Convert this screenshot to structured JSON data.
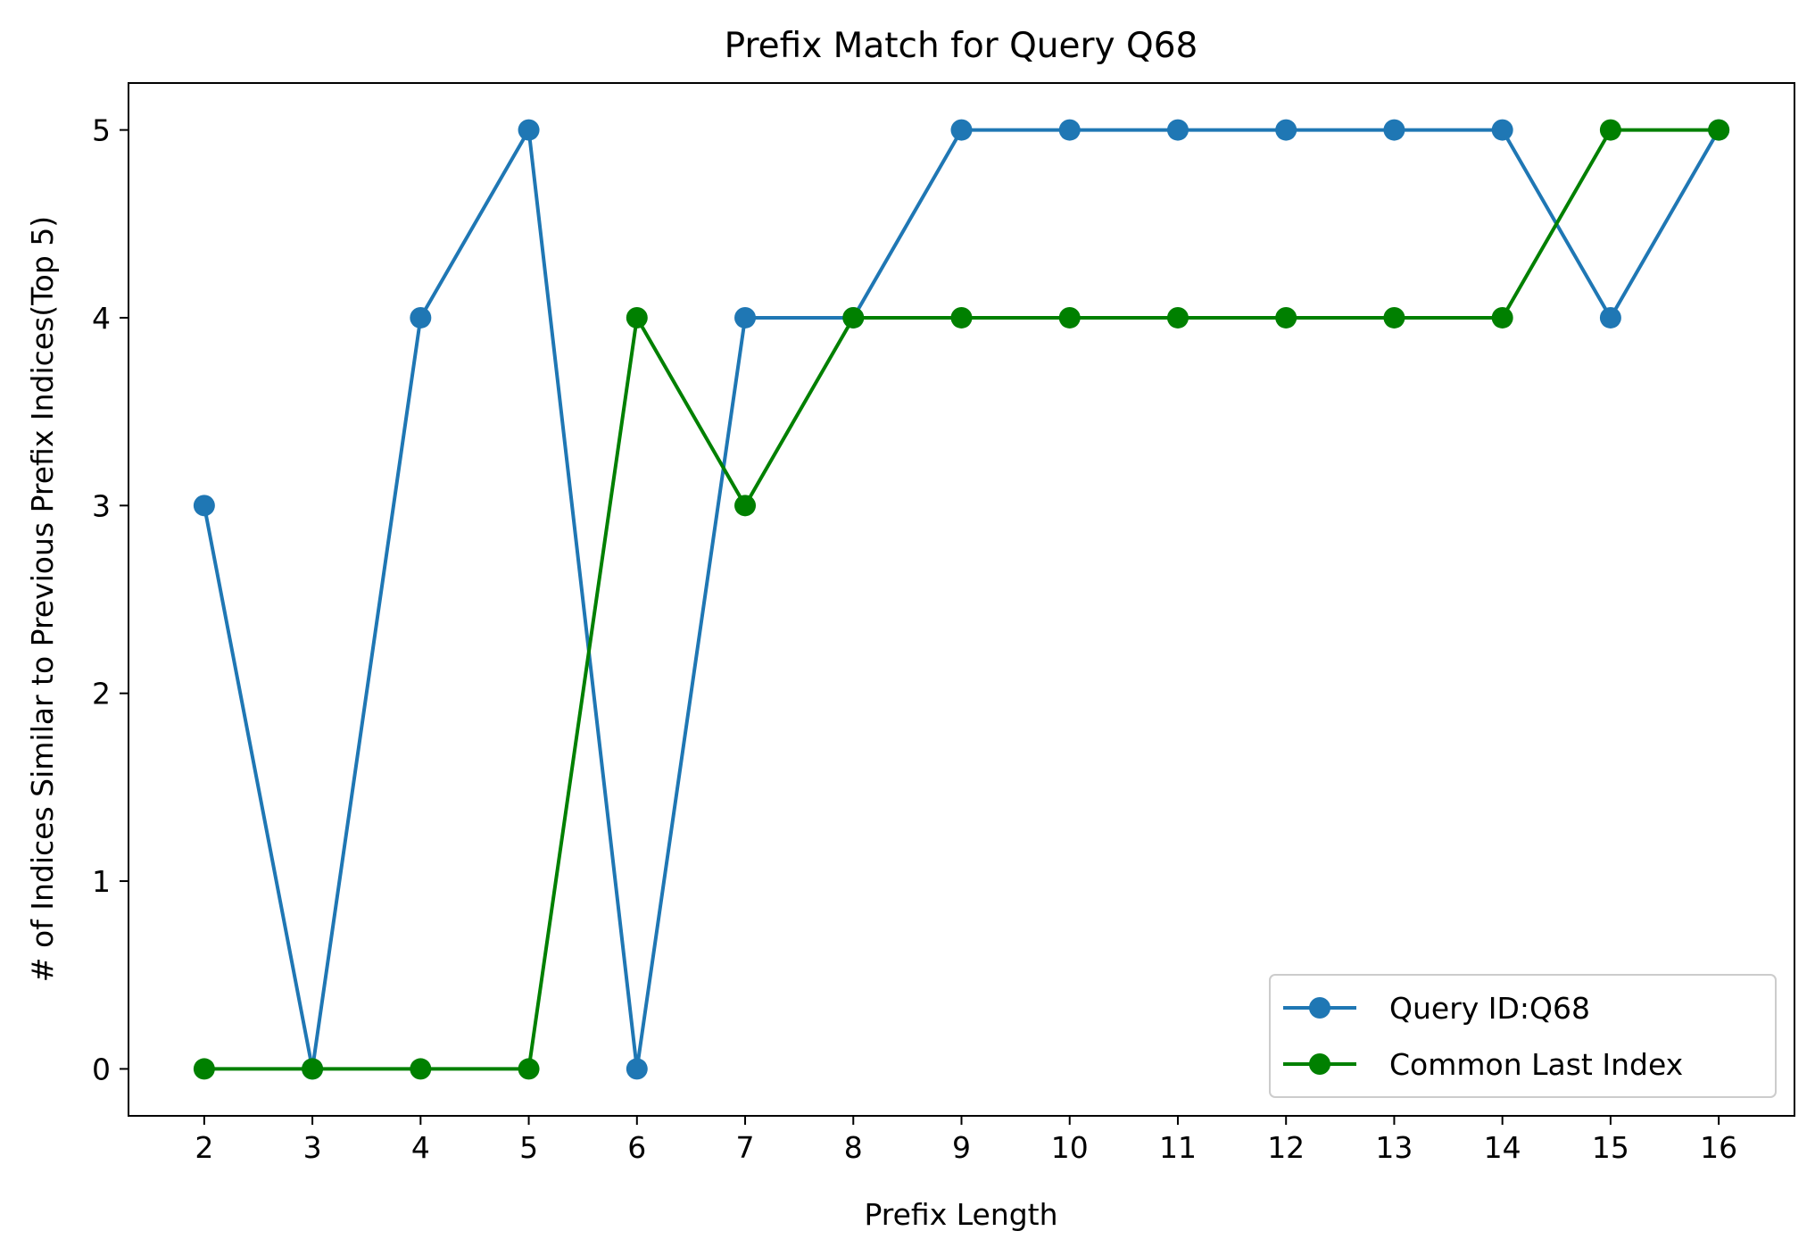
{
  "chart_data": {
    "type": "line",
    "title": "Prefix Match for Query Q68",
    "xlabel": "Prefix Length",
    "ylabel": "# of Indices Similar to Previous Prefix Indices(Top 5)",
    "x": [
      2,
      3,
      4,
      5,
      6,
      7,
      8,
      9,
      10,
      11,
      12,
      13,
      14,
      15,
      16
    ],
    "xlim": [
      1.3,
      16.7
    ],
    "ylim": [
      -0.25,
      5.25
    ],
    "yticks": [
      0,
      1,
      2,
      3,
      4,
      5
    ],
    "grid": false,
    "legend_position": "lower-right",
    "series": [
      {
        "name": "Query ID:Q68",
        "color": "#1f77b4",
        "marker": "circle",
        "values": [
          3,
          0,
          4,
          5,
          0,
          4,
          4,
          5,
          5,
          5,
          5,
          5,
          5,
          4,
          5
        ]
      },
      {
        "name": "Common Last Index",
        "color": "#008000",
        "marker": "circle",
        "values": [
          0,
          0,
          0,
          0,
          4,
          3,
          4,
          4,
          4,
          4,
          4,
          4,
          4,
          5,
          5
        ]
      }
    ]
  }
}
